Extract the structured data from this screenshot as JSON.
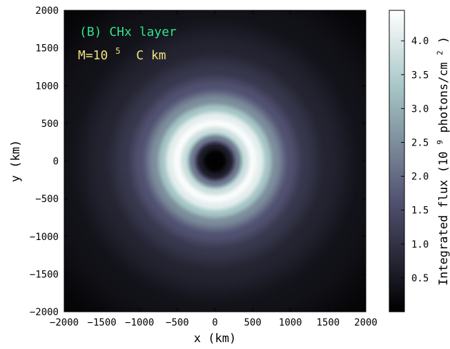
{
  "chart_data": {
    "type": "heatmap",
    "title": "",
    "xlabel": "x (km)",
    "ylabel": "y (km)",
    "xlim": [
      -2000,
      2000
    ],
    "ylim": [
      -2000,
      2000
    ],
    "xticks": [
      -2000,
      -1500,
      -1000,
      -500,
      0,
      500,
      1000,
      1500,
      2000
    ],
    "yticks": [
      -2000,
      -1500,
      -1000,
      -500,
      0,
      500,
      1000,
      1500,
      2000
    ],
    "xtick_labels": [
      "−2000",
      "−1500",
      "−1000",
      "−500",
      "0",
      "500",
      "1000",
      "1500",
      "2000"
    ],
    "ytick_labels": [
      "−2000",
      "−1500",
      "−1000",
      "−500",
      "0",
      "500",
      "1000",
      "1500",
      "2000"
    ],
    "annotations": {
      "panel_label": "(B) CHx layer",
      "mass_prefix": "M=10",
      "mass_exponent": "5",
      "mass_suffix": "C km"
    },
    "colorbar": {
      "label_prefix": "Integrated flux (10",
      "label_exp1": "9",
      "label_middle": " photons/cm",
      "label_exp2": "2",
      "label_suffix": ")",
      "range": [
        0,
        4.45
      ],
      "ticks": [
        0.5,
        1.0,
        1.5,
        2.0,
        2.5,
        3.0,
        3.5,
        4.0
      ],
      "tick_labels": [
        "0.5",
        "1.0",
        "1.5",
        "2.0",
        "2.5",
        "3.0",
        "3.5",
        "4.0"
      ],
      "colormap": "bone"
    },
    "radial_profile": {
      "r_km": [
        0,
        100,
        200,
        300,
        400,
        500,
        600,
        700,
        800,
        1000,
        1200,
        1500,
        2000,
        2830
      ],
      "flux": [
        0,
        0.05,
        0.6,
        2.2,
        3.8,
        4.4,
        4.1,
        3.3,
        2.5,
        1.6,
        1.1,
        0.7,
        0.35,
        0.1
      ]
    },
    "colors": {
      "panel_label": "#2ee58a",
      "mass_label": "#f4e07c"
    }
  }
}
